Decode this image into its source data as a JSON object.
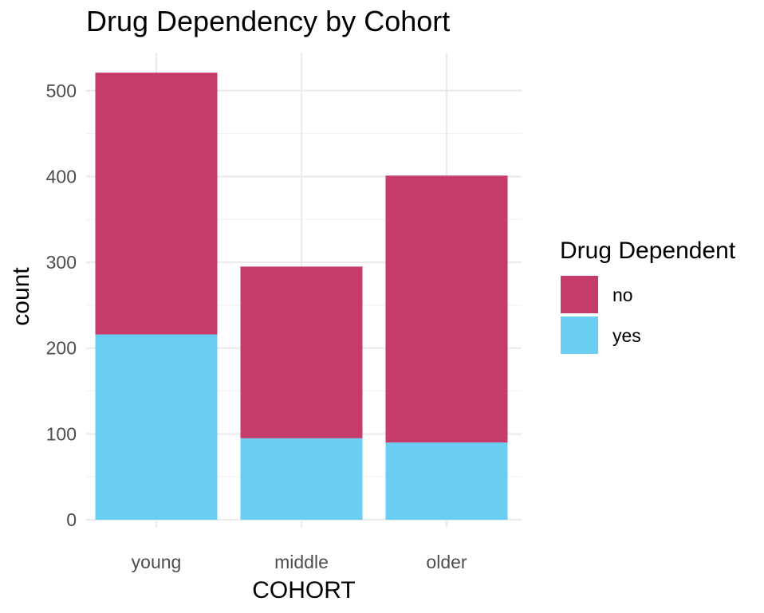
{
  "chart_data": {
    "type": "bar",
    "stacked": true,
    "title": "Drug Dependency by Cohort",
    "xlabel": "COHORT",
    "ylabel": "count",
    "categories": [
      "young",
      "middle",
      "older"
    ],
    "series": [
      {
        "name": "no",
        "color": "#C73B6C",
        "values": [
          305,
          200,
          311
        ]
      },
      {
        "name": "yes",
        "color": "#6ACDF2",
        "values": [
          216,
          95,
          90
        ]
      }
    ],
    "ylim": [
      0,
      530
    ],
    "yticks": [
      0,
      100,
      200,
      300,
      400,
      500
    ],
    "grid": true,
    "legend": {
      "title": "Drug Dependent",
      "placement": "right"
    }
  }
}
